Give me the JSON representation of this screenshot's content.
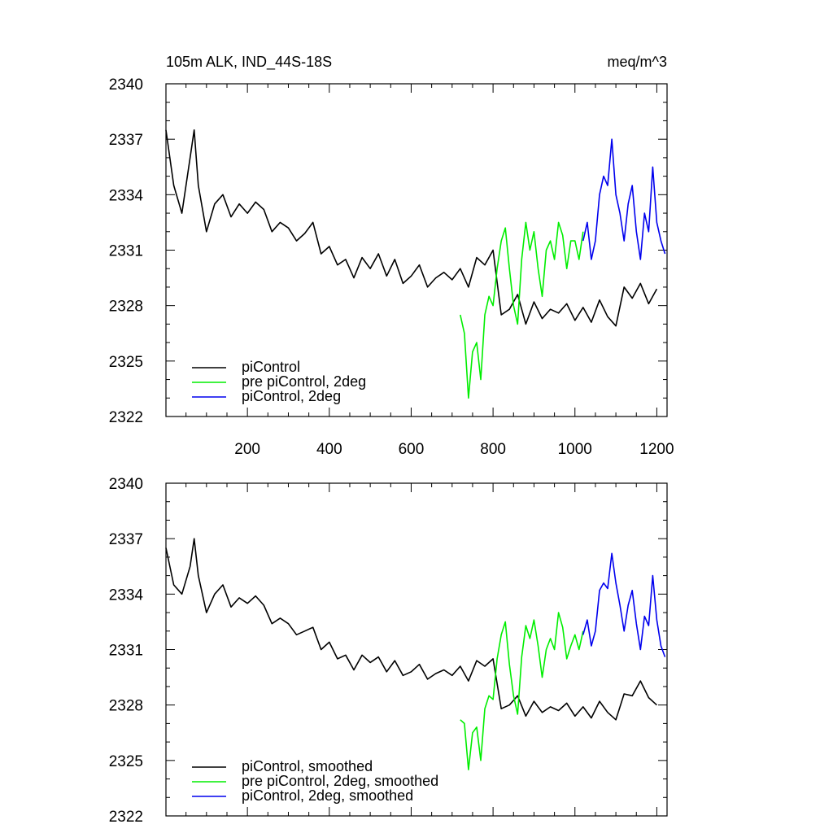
{
  "figure": {
    "title": "105m ALK, IND_44S-18S",
    "units": "meq/m^3"
  },
  "chart_data": [
    {
      "type": "line",
      "title": "105m ALK, IND_44S-18S",
      "units": "meq/m^3",
      "xlim": [
        1,
        1225
      ],
      "ylim": [
        2322,
        2340
      ],
      "xticks": [
        200,
        400,
        600,
        800,
        1000,
        1200
      ],
      "xtick_labels": [
        "200",
        "400",
        "600",
        "800",
        "1000",
        "1200"
      ],
      "yticks": [
        2322,
        2325,
        2328,
        2331,
        2334,
        2337,
        2340
      ],
      "ytick_labels": [
        "2322",
        "2325",
        "2328",
        "2331",
        "2334",
        "2337",
        "2340"
      ],
      "legend": [
        "piControl",
        "pre piControl, 2deg",
        "piControl, 2deg"
      ],
      "series": [
        {
          "name": "piControl",
          "color": "#000000",
          "x": [
            1,
            20,
            40,
            60,
            70,
            80,
            100,
            120,
            140,
            160,
            180,
            200,
            220,
            240,
            260,
            280,
            300,
            320,
            340,
            360,
            380,
            400,
            420,
            440,
            460,
            480,
            500,
            520,
            540,
            560,
            580,
            600,
            620,
            640,
            660,
            680,
            700,
            720,
            740,
            760,
            780,
            800,
            820,
            840,
            860,
            880,
            900,
            920,
            940,
            960,
            980,
            1000,
            1020,
            1040,
            1060,
            1080,
            1100,
            1120,
            1140,
            1160,
            1180,
            1200
          ],
          "values": [
            2337.5,
            2334.5,
            2333,
            2336,
            2337.5,
            2334.5,
            2332,
            2333.5,
            2334,
            2332.8,
            2333.5,
            2333,
            2333.6,
            2333.2,
            2332,
            2332.5,
            2332.2,
            2331.5,
            2331.9,
            2332.5,
            2330.8,
            2331.2,
            2330.2,
            2330.5,
            2329.5,
            2330.6,
            2330,
            2330.8,
            2329.6,
            2330.5,
            2329.2,
            2329.6,
            2330.2,
            2329,
            2329.5,
            2329.8,
            2329.4,
            2330,
            2329,
            2330.6,
            2330.2,
            2331,
            2327.5,
            2327.8,
            2328.6,
            2327,
            2328.2,
            2327.3,
            2327.8,
            2327.6,
            2328.1,
            2327.2,
            2327.9,
            2327.1,
            2328.3,
            2327.4,
            2326.9,
            2329,
            2328.4,
            2329.2,
            2328.1,
            2328.9
          ]
        },
        {
          "name": "pre piControl, 2deg",
          "color": "#00ee00",
          "x": [
            720,
            730,
            740,
            750,
            760,
            770,
            780,
            790,
            800,
            810,
            820,
            830,
            840,
            850,
            860,
            870,
            880,
            890,
            900,
            910,
            920,
            930,
            940,
            950,
            960,
            970,
            980,
            990,
            1000,
            1010,
            1020
          ],
          "values": [
            2327.5,
            2326.5,
            2323,
            2325.5,
            2326,
            2324,
            2327.5,
            2328.5,
            2328,
            2330,
            2331.5,
            2332.2,
            2330,
            2328,
            2327,
            2330.5,
            2332.5,
            2331,
            2332,
            2330,
            2328.5,
            2331,
            2331.5,
            2330.5,
            2332.5,
            2331.8,
            2330,
            2331.5,
            2331.5,
            2330.5,
            2332
          ]
        },
        {
          "name": "piControl, 2deg",
          "color": "#0000ee",
          "x": [
            1020,
            1030,
            1040,
            1050,
            1060,
            1070,
            1080,
            1090,
            1100,
            1110,
            1120,
            1130,
            1140,
            1150,
            1160,
            1170,
            1180,
            1190,
            1200,
            1210,
            1220
          ],
          "values": [
            2331.5,
            2332.5,
            2330.5,
            2331.5,
            2334,
            2335,
            2334.5,
            2337,
            2334,
            2333,
            2331.5,
            2333.5,
            2334.5,
            2332,
            2330.5,
            2333,
            2332,
            2335.5,
            2332.5,
            2331.5,
            2330.8
          ]
        }
      ]
    },
    {
      "type": "line",
      "title": "",
      "xlim": [
        1,
        1225
      ],
      "ylim": [
        2322,
        2340
      ],
      "xticks": [
        200,
        400,
        600,
        800,
        1000,
        1200
      ],
      "xtick_labels": [],
      "yticks": [
        2322,
        2325,
        2328,
        2331,
        2334,
        2337,
        2340
      ],
      "ytick_labels": [
        "2322",
        "2325",
        "2328",
        "2331",
        "2334",
        "2337",
        "2340"
      ],
      "legend": [
        "piControl, smoothed",
        "pre piControl, 2deg, smoothed",
        "piControl, 2deg, smoothed"
      ],
      "series": [
        {
          "name": "piControl, smoothed",
          "color": "#000000",
          "x": [
            1,
            20,
            40,
            60,
            70,
            80,
            100,
            120,
            140,
            160,
            180,
            200,
            220,
            240,
            260,
            280,
            300,
            320,
            340,
            360,
            380,
            400,
            420,
            440,
            460,
            480,
            500,
            520,
            540,
            560,
            580,
            600,
            620,
            640,
            660,
            680,
            700,
            720,
            740,
            760,
            780,
            800,
            820,
            840,
            860,
            880,
            900,
            920,
            940,
            960,
            980,
            1000,
            1020,
            1040,
            1060,
            1080,
            1100,
            1120,
            1140,
            1160,
            1180,
            1200
          ],
          "values": [
            2336.5,
            2334.5,
            2334,
            2335.5,
            2337,
            2335,
            2333,
            2334,
            2334.5,
            2333.3,
            2333.8,
            2333.5,
            2333.9,
            2333.4,
            2332.4,
            2332.7,
            2332.4,
            2331.8,
            2332,
            2332.2,
            2331,
            2331.4,
            2330.5,
            2330.7,
            2329.9,
            2330.7,
            2330.3,
            2330.6,
            2329.8,
            2330.4,
            2329.6,
            2329.8,
            2330.2,
            2329.4,
            2329.7,
            2329.9,
            2329.6,
            2330.1,
            2329.3,
            2330.4,
            2330.1,
            2330.5,
            2327.8,
            2328,
            2328.5,
            2327.4,
            2328.2,
            2327.6,
            2327.9,
            2327.7,
            2328.1,
            2327.4,
            2327.9,
            2327.3,
            2328.2,
            2327.6,
            2327.2,
            2328.6,
            2328.5,
            2329.3,
            2328.4,
            2328
          ]
        },
        {
          "name": "pre piControl, 2deg, smoothed",
          "color": "#00ee00",
          "x": [
            720,
            730,
            740,
            750,
            760,
            770,
            780,
            790,
            800,
            810,
            820,
            830,
            840,
            850,
            860,
            870,
            880,
            890,
            900,
            910,
            920,
            930,
            940,
            950,
            960,
            970,
            980,
            990,
            1000,
            1010,
            1020
          ],
          "values": [
            2327.2,
            2327,
            2324.5,
            2326.5,
            2326.8,
            2325,
            2327.8,
            2328.5,
            2328.3,
            2330.5,
            2331.8,
            2332.5,
            2330.2,
            2328.5,
            2327.5,
            2330.6,
            2332.3,
            2331.6,
            2332.6,
            2331.2,
            2329.5,
            2331,
            2331.6,
            2331,
            2333,
            2332.2,
            2330.5,
            2331.2,
            2331.8,
            2331,
            2332
          ]
        },
        {
          "name": "piControl, 2deg, smoothed",
          "color": "#0000ee",
          "x": [
            1020,
            1030,
            1040,
            1050,
            1060,
            1070,
            1080,
            1090,
            1100,
            1110,
            1120,
            1130,
            1140,
            1150,
            1160,
            1170,
            1180,
            1190,
            1200,
            1210,
            1220
          ],
          "values": [
            2331.8,
            2332.6,
            2331.2,
            2332,
            2334.2,
            2334.6,
            2334.3,
            2336.2,
            2334.6,
            2333.4,
            2332,
            2333.4,
            2334.2,
            2332.4,
            2331,
            2332.8,
            2332.3,
            2335,
            2332.6,
            2331.2,
            2330.6
          ]
        }
      ]
    }
  ]
}
